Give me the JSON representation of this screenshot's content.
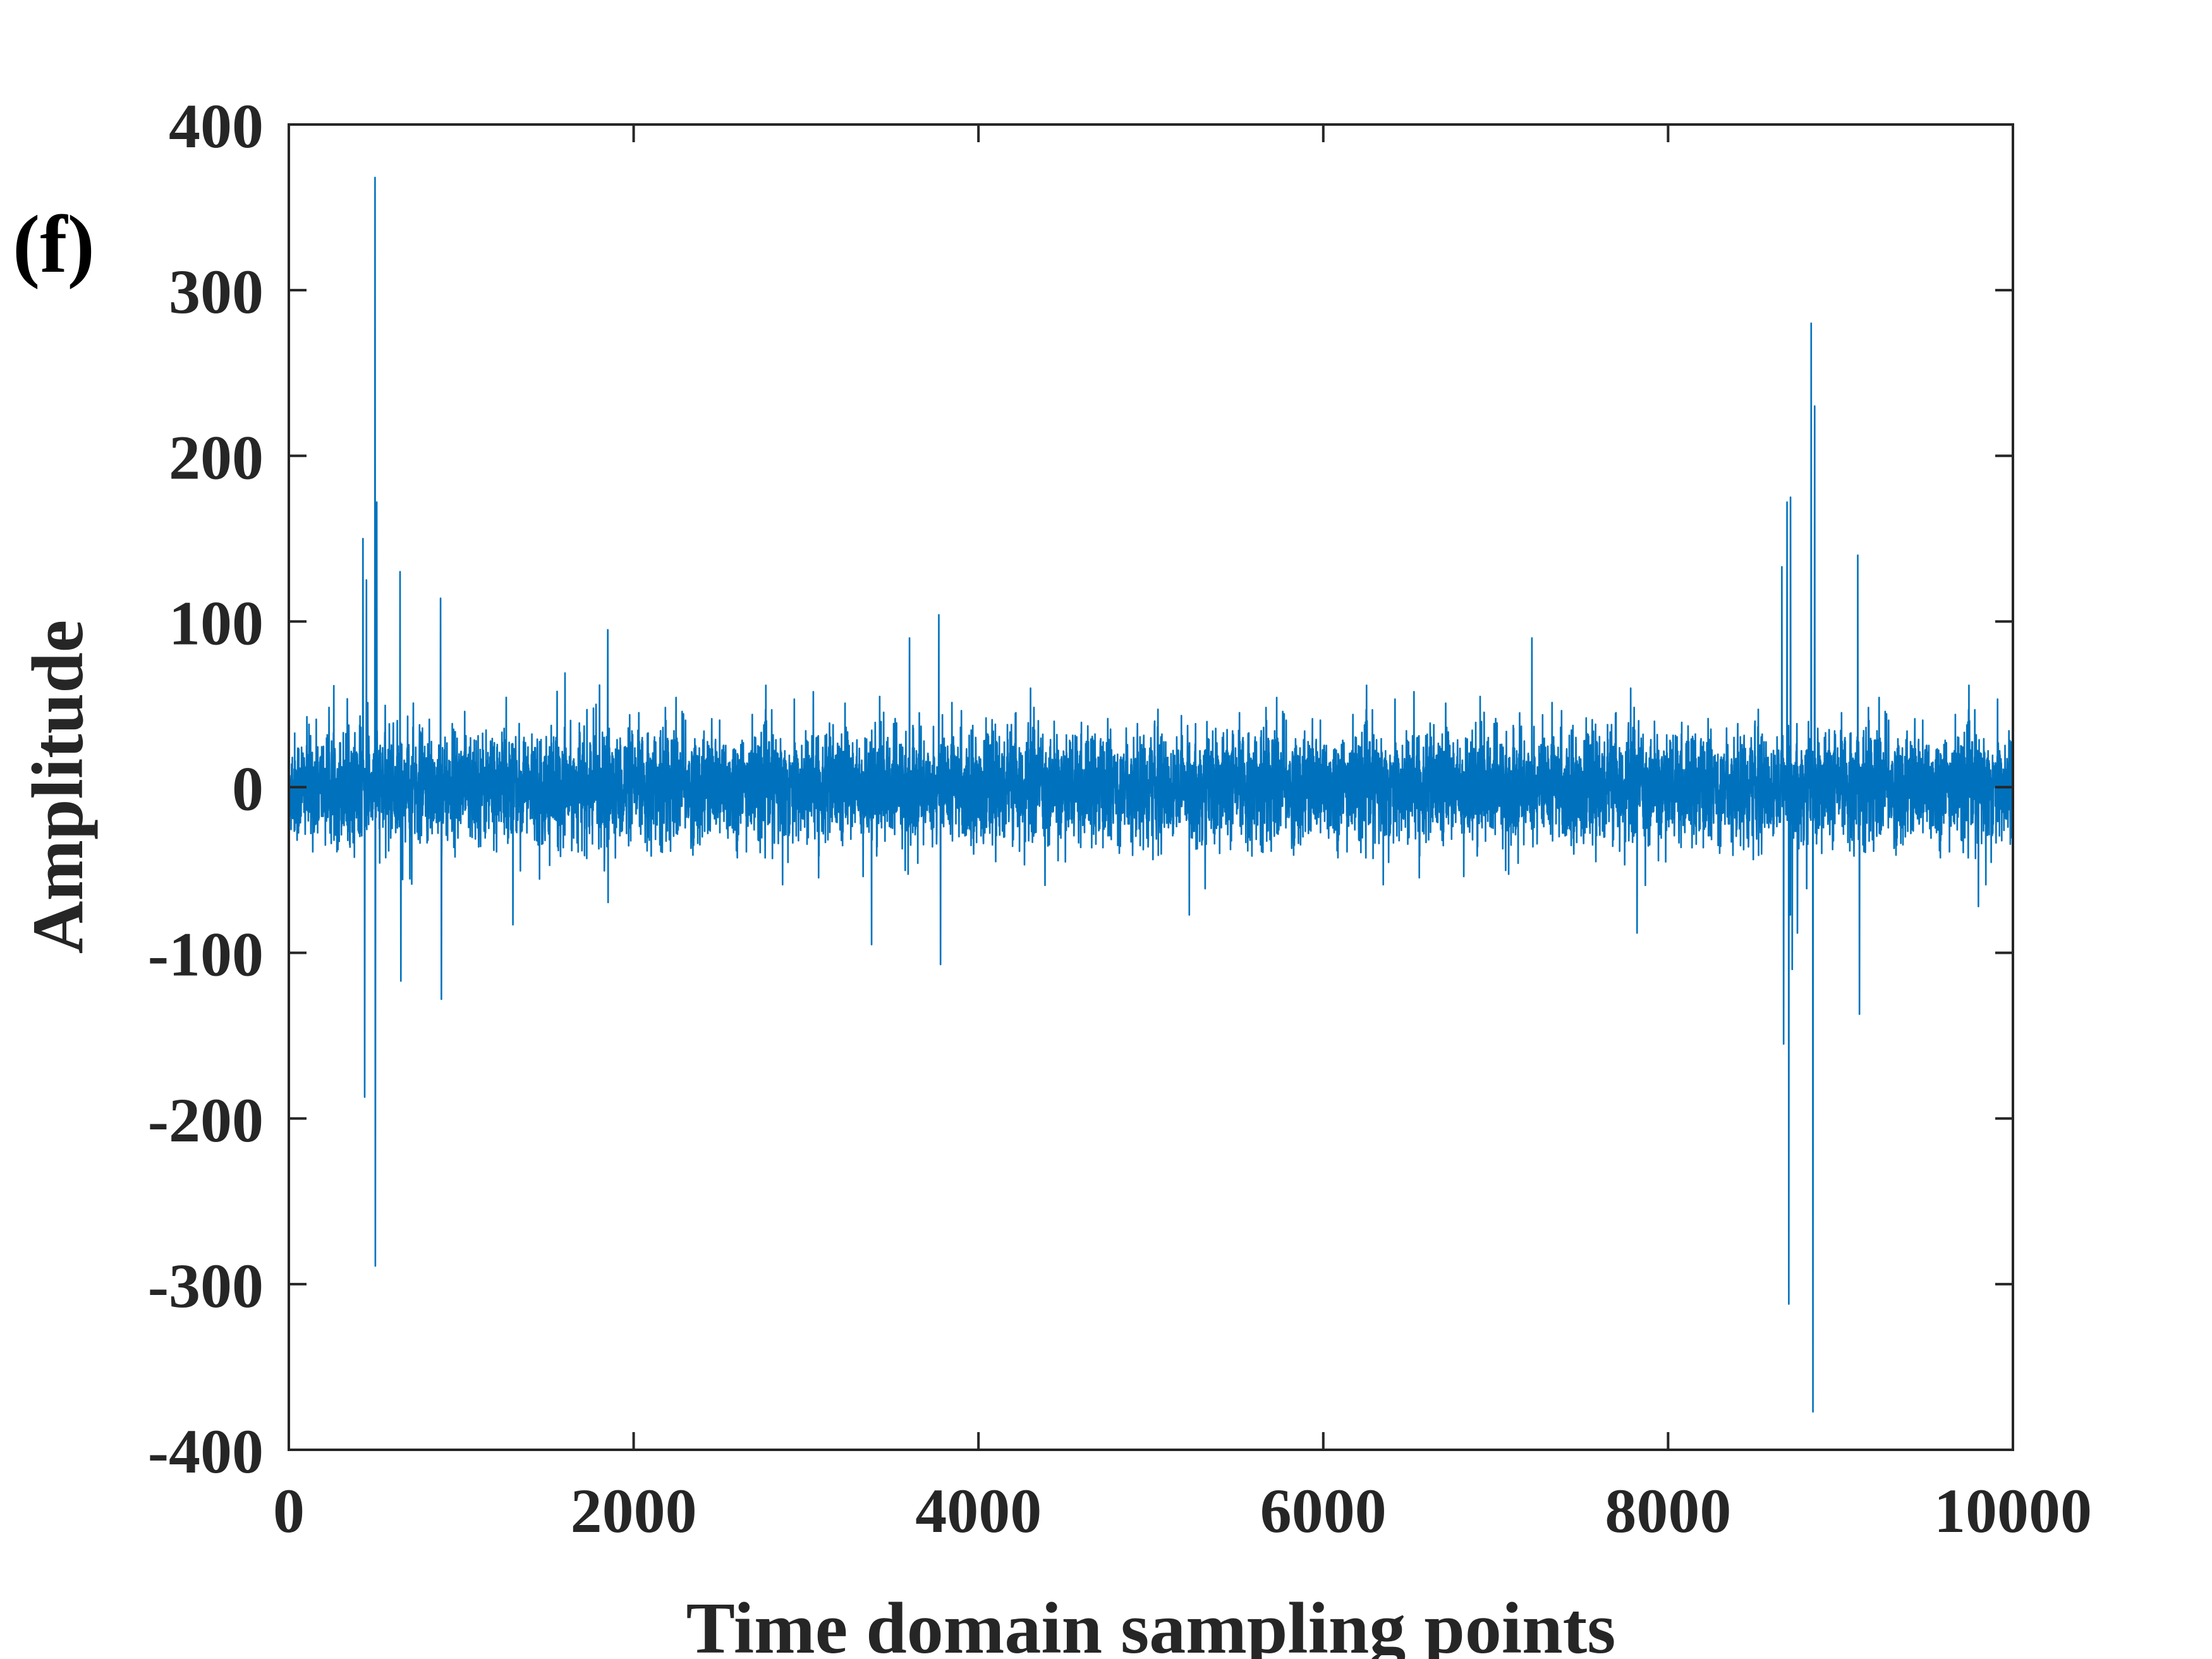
{
  "chart_data": {
    "type": "line",
    "panel_label": "(f)",
    "xlabel": "Time domain sampling points",
    "ylabel": "Amplitude",
    "xlim": [
      0,
      10000
    ],
    "ylim": [
      -400,
      400
    ],
    "xticks": [
      0,
      2000,
      4000,
      6000,
      8000,
      10000
    ],
    "yticks": [
      400,
      300,
      200,
      100,
      0,
      -100,
      -200,
      -300,
      -400
    ],
    "xtick_labels": [
      "0",
      "2000",
      "4000",
      "6000",
      "8000",
      "10000"
    ],
    "ytick_labels": [
      "400",
      "300",
      "200",
      "100",
      "0",
      "-100",
      "-200",
      "-300",
      "-400"
    ],
    "grid": false,
    "series_color": "#0072BD",
    "axis_color": "#262626",
    "n_points": 10000,
    "noise_band": [
      -45,
      45
    ],
    "spikes": [
      {
        "x": 430,
        "y": 150
      },
      {
        "x": 440,
        "y": -187
      },
      {
        "x": 450,
        "y": 125
      },
      {
        "x": 500,
        "y": 368
      },
      {
        "x": 502,
        "y": -289
      },
      {
        "x": 510,
        "y": 172
      },
      {
        "x": 645,
        "y": 130
      },
      {
        "x": 650,
        "y": -117
      },
      {
        "x": 880,
        "y": 114
      },
      {
        "x": 885,
        "y": -128
      },
      {
        "x": 1300,
        "y": -83
      },
      {
        "x": 1850,
        "y": 95
      },
      {
        "x": 3380,
        "y": -95
      },
      {
        "x": 3600,
        "y": 90
      },
      {
        "x": 3770,
        "y": 104
      },
      {
        "x": 3780,
        "y": -107
      },
      {
        "x": 7210,
        "y": 90
      },
      {
        "x": 7820,
        "y": -88
      },
      {
        "x": 8660,
        "y": 133
      },
      {
        "x": 8670,
        "y": -155
      },
      {
        "x": 8690,
        "y": 172
      },
      {
        "x": 8700,
        "y": -312
      },
      {
        "x": 8710,
        "y": 175
      },
      {
        "x": 8720,
        "y": -110
      },
      {
        "x": 8750,
        "y": -88
      },
      {
        "x": 8830,
        "y": 280
      },
      {
        "x": 8840,
        "y": -377
      },
      {
        "x": 8850,
        "y": 230
      },
      {
        "x": 9100,
        "y": 140
      },
      {
        "x": 9110,
        "y": -137
      },
      {
        "x": 9800,
        "y": -72
      }
    ]
  }
}
